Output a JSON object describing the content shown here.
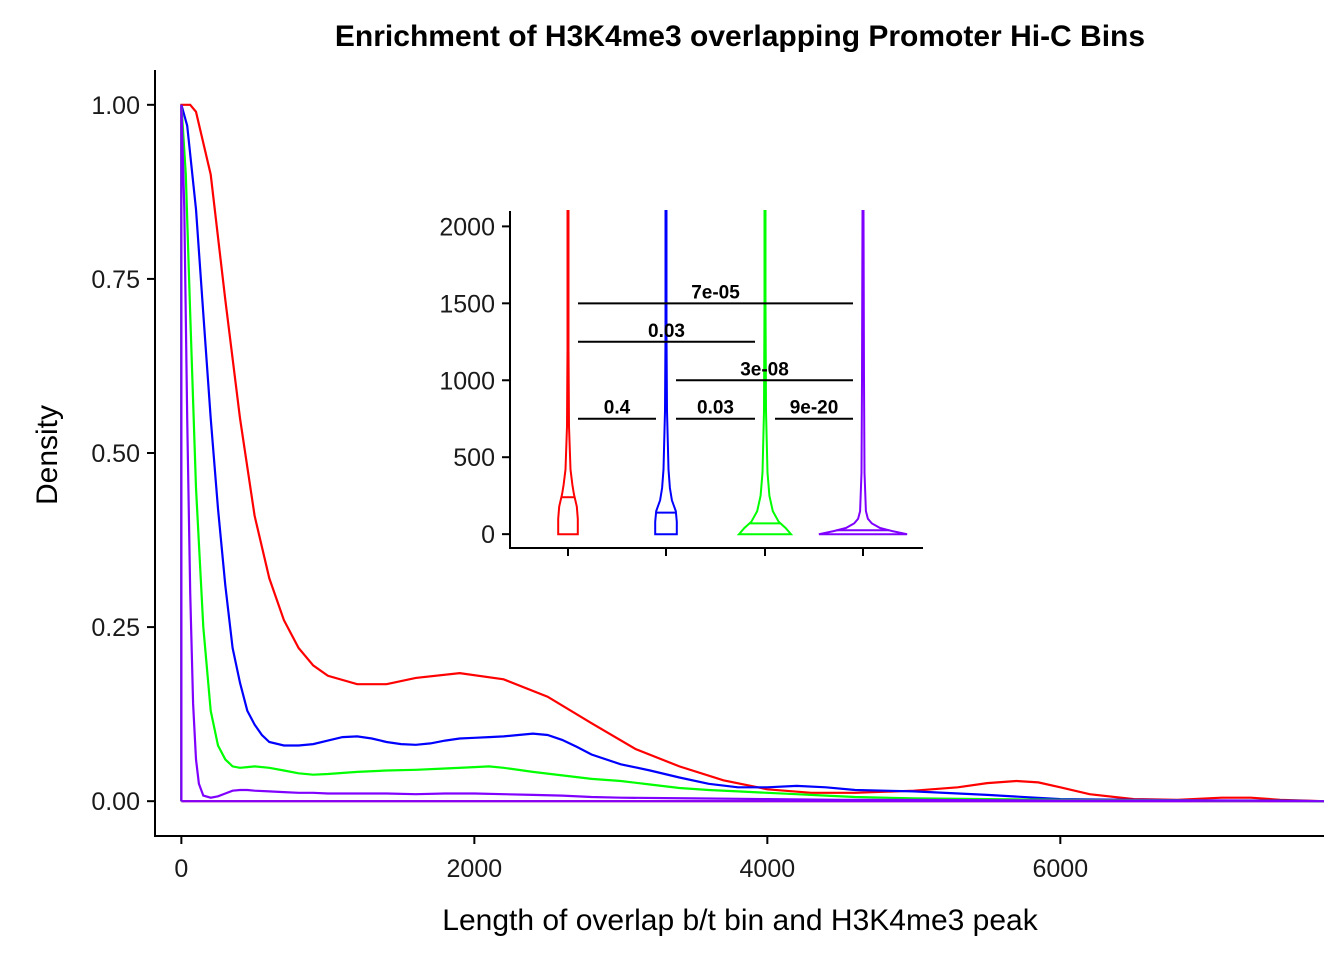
{
  "chart_data": [
    {
      "type": "line",
      "title": "Enrichment of H3K4me3 overlapping Promoter Hi-C Bins",
      "xlabel": "Length of overlap b/t bin and H3K4me3 peak",
      "ylabel": "Density",
      "xlim": [
        -180,
        7800
      ],
      "ylim": [
        -0.05,
        1.05
      ],
      "x_ticks": [
        0,
        2000,
        4000,
        6000
      ],
      "x_tick_labels": [
        "0",
        "2000",
        "4000",
        "6000"
      ],
      "y_ticks": [
        0,
        0.25,
        0.5,
        0.75,
        1.0
      ],
      "y_tick_labels": [
        "0.00",
        "0.25",
        "0.50",
        "0.75",
        "1.00"
      ],
      "grid": false,
      "legend": "none",
      "series": [
        {
          "color": "#ff0000",
          "x": [
            0,
            60,
            100,
            200,
            300,
            400,
            500,
            600,
            700,
            800,
            900,
            1000,
            1200,
            1400,
            1600,
            1900,
            2200,
            2500,
            2800,
            3100,
            3400,
            3700,
            4000,
            4300,
            4600,
            5000,
            5300,
            5500,
            5700,
            5850,
            6000,
            6200,
            6500,
            6800,
            7100,
            7300,
            7500,
            7800
          ],
          "y": [
            1.0,
            1.0,
            0.99,
            0.9,
            0.72,
            0.55,
            0.41,
            0.32,
            0.26,
            0.22,
            0.195,
            0.18,
            0.168,
            0.168,
            0.177,
            0.184,
            0.175,
            0.15,
            0.112,
            0.075,
            0.05,
            0.03,
            0.017,
            0.012,
            0.012,
            0.015,
            0.02,
            0.026,
            0.029,
            0.027,
            0.02,
            0.01,
            0.003,
            0.002,
            0.005,
            0.005,
            0.002,
            0.0
          ]
        },
        {
          "color": "#0000ff",
          "x": [
            0,
            40,
            100,
            150,
            200,
            250,
            300,
            350,
            400,
            450,
            500,
            550,
            600,
            700,
            800,
            900,
            1000,
            1100,
            1200,
            1300,
            1400,
            1500,
            1600,
            1700,
            1800,
            1900,
            2000,
            2100,
            2200,
            2300,
            2400,
            2500,
            2600,
            2700,
            2800,
            3000,
            3200,
            3400,
            3600,
            3800,
            4000,
            4200,
            4400,
            4600,
            4800,
            5000,
            5500,
            6000,
            6500,
            7000,
            7500,
            7800
          ],
          "y": [
            1.0,
            0.97,
            0.85,
            0.7,
            0.55,
            0.42,
            0.31,
            0.22,
            0.17,
            0.13,
            0.11,
            0.095,
            0.085,
            0.08,
            0.08,
            0.082,
            0.087,
            0.092,
            0.093,
            0.09,
            0.085,
            0.082,
            0.081,
            0.083,
            0.087,
            0.09,
            0.091,
            0.092,
            0.093,
            0.095,
            0.097,
            0.095,
            0.088,
            0.078,
            0.067,
            0.053,
            0.044,
            0.034,
            0.025,
            0.02,
            0.02,
            0.022,
            0.02,
            0.016,
            0.015,
            0.014,
            0.009,
            0.003,
            0.002,
            0.001,
            0.001,
            0.0
          ]
        },
        {
          "color": "#00ff00",
          "x": [
            0,
            30,
            60,
            100,
            150,
            200,
            250,
            300,
            350,
            400,
            450,
            500,
            600,
            700,
            800,
            900,
            1000,
            1200,
            1400,
            1600,
            1800,
            2000,
            2100,
            2200,
            2400,
            2600,
            2800,
            3000,
            3200,
            3400,
            3600,
            3800,
            4000,
            4200,
            4400,
            4600,
            5000,
            5500,
            6000,
            7000,
            7800
          ],
          "y": [
            1.0,
            0.9,
            0.7,
            0.45,
            0.25,
            0.13,
            0.08,
            0.06,
            0.05,
            0.048,
            0.049,
            0.05,
            0.048,
            0.044,
            0.04,
            0.038,
            0.039,
            0.042,
            0.044,
            0.045,
            0.047,
            0.049,
            0.05,
            0.048,
            0.042,
            0.037,
            0.032,
            0.029,
            0.024,
            0.019,
            0.016,
            0.014,
            0.012,
            0.01,
            0.008,
            0.006,
            0.004,
            0.003,
            0.002,
            0.001,
            0.0
          ]
        },
        {
          "color": "#8000ff",
          "x": [
            0,
            20,
            40,
            60,
            80,
            100,
            120,
            150,
            200,
            250,
            300,
            350,
            400,
            450,
            500,
            600,
            700,
            800,
            900,
            1000,
            1200,
            1400,
            1600,
            1800,
            2000,
            2200,
            2400,
            2600,
            2800,
            3000,
            3500,
            4000,
            4500,
            5000,
            6000,
            7000,
            7800
          ],
          "y": [
            1.0,
            0.85,
            0.55,
            0.3,
            0.14,
            0.06,
            0.025,
            0.008,
            0.005,
            0.007,
            0.011,
            0.015,
            0.016,
            0.016,
            0.015,
            0.014,
            0.013,
            0.012,
            0.012,
            0.011,
            0.011,
            0.011,
            0.01,
            0.011,
            0.011,
            0.01,
            0.009,
            0.008,
            0.006,
            0.005,
            0.004,
            0.003,
            0.002,
            0.002,
            0.001,
            0.001,
            0.0
          ]
        }
      ],
      "baselines": [
        {
          "color": "#ff0000",
          "x_start": 0,
          "x_end": 7800
        },
        {
          "color": "#8000ff",
          "x_start": 0,
          "x_end": 7800
        }
      ]
    },
    {
      "type": "violin",
      "ylim": [
        -90,
        2100
      ],
      "y_ticks": [
        0,
        500,
        1000,
        1500,
        2000
      ],
      "y_tick_labels": [
        "0",
        "500",
        "1000",
        "1500",
        "2000"
      ],
      "x_tick_labels": [],
      "groups": [
        {
          "color": "#ff0000",
          "median": 240,
          "profile": [
            [
              0,
              0.2
            ],
            [
              100,
              0.2
            ],
            [
              180,
              0.18
            ],
            [
              260,
              0.12
            ],
            [
              320,
              0.09
            ],
            [
              420,
              0.05
            ],
            [
              700,
              0.02
            ],
            [
              1200,
              0.01
            ],
            [
              2100,
              0.01
            ]
          ]
        },
        {
          "color": "#0000ff",
          "median": 140,
          "profile": [
            [
              0,
              0.22
            ],
            [
              80,
              0.22
            ],
            [
              150,
              0.2
            ],
            [
              220,
              0.12
            ],
            [
              300,
              0.08
            ],
            [
              420,
              0.05
            ],
            [
              800,
              0.02
            ],
            [
              1300,
              0.01
            ],
            [
              2100,
              0.01
            ]
          ]
        },
        {
          "color": "#00ff00",
          "median": 70,
          "profile": [
            [
              0,
              0.53
            ],
            [
              40,
              0.42
            ],
            [
              80,
              0.28
            ],
            [
              150,
              0.16
            ],
            [
              250,
              0.09
            ],
            [
              400,
              0.05
            ],
            [
              800,
              0.02
            ],
            [
              1500,
              0.01
            ],
            [
              2100,
              0.01
            ]
          ]
        },
        {
          "color": "#8000ff",
          "median": 25,
          "profile": [
            [
              0,
              0.9
            ],
            [
              20,
              0.6
            ],
            [
              40,
              0.35
            ],
            [
              70,
              0.18
            ],
            [
              100,
              0.1
            ],
            [
              150,
              0.06
            ],
            [
              400,
              0.03
            ],
            [
              1000,
              0.02
            ],
            [
              2100,
              0.01
            ]
          ]
        }
      ],
      "comparisons": [
        {
          "from": 1,
          "to": 2,
          "y": 750,
          "label": "0.4"
        },
        {
          "from": 2,
          "to": 3,
          "y": 750,
          "label": "0.03"
        },
        {
          "from": 3,
          "to": 4,
          "y": 750,
          "label": "9e-20"
        },
        {
          "from": 2,
          "to": 4,
          "y": 1000,
          "label": "3e-08"
        },
        {
          "from": 1,
          "to": 3,
          "y": 1250,
          "label": "0.03"
        },
        {
          "from": 1,
          "to": 4,
          "y": 1500,
          "label": "7e-05"
        }
      ]
    }
  ]
}
